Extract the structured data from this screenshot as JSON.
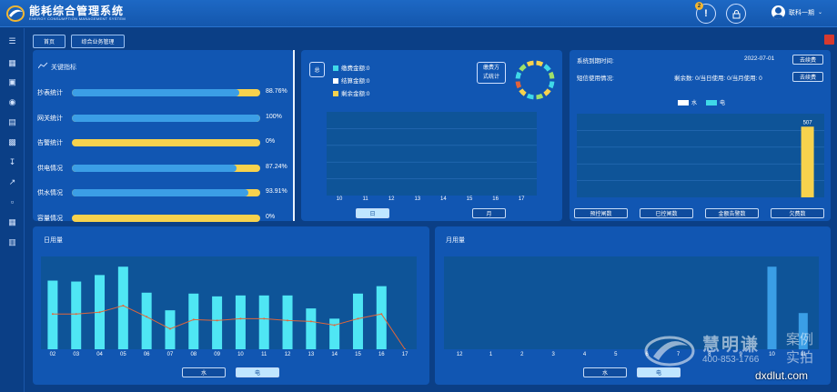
{
  "header": {
    "title": "能耗综合管理系统",
    "subtitle": "ENERGY CONSUMPTION MANAGEMENT SYSTEM",
    "notification_count": "2",
    "user_name": "联科一期"
  },
  "tabs": [
    {
      "label": "首页"
    },
    {
      "label": "综合业务管理"
    }
  ],
  "kpi": {
    "title": "关键指标",
    "items": [
      {
        "label": "抄表统计",
        "value": "88.76%",
        "fraction": 0.8876
      },
      {
        "label": "网关统计",
        "value": "100%",
        "fraction": 1.0
      },
      {
        "label": "告警统计",
        "value": "0%",
        "fraction": 0
      },
      {
        "label": "供电情况",
        "value": "87.24%",
        "fraction": 0.8724
      },
      {
        "label": "供水情况",
        "value": "93.91%",
        "fraction": 0.9391
      },
      {
        "label": "容量情况",
        "value": "0%",
        "fraction": 0
      }
    ]
  },
  "fee": {
    "total_label": "总",
    "legend": [
      "缴费金额:0",
      "结算金额:0",
      "剩余金额:0"
    ],
    "legend_colors": [
      "#3fd9e8",
      "#ffffff",
      "#f7d24d"
    ],
    "donut_label_1": "缴费方",
    "donut_label_2": "式统计",
    "buttons": {
      "day": "日",
      "month": "月"
    }
  },
  "system": {
    "expiry_label": "系统到期时间:",
    "expiry_date": "2022-07-01",
    "sms_label": "短信使用情况:",
    "sms_text": "剩余数: 0/当日使用: 0/当月使用: 0",
    "renew_label": "去续费",
    "legend_water": "水",
    "legend_elec": "电",
    "buttons": [
      "预控闸数",
      "已控闸数",
      "金额告警数",
      "欠费数"
    ]
  },
  "daily": {
    "title": "日用量",
    "buttons": {
      "water": "水",
      "elec": "电"
    }
  },
  "monthly": {
    "title": "月用量",
    "buttons": {
      "water": "水",
      "elec": "电"
    }
  },
  "watermark": {
    "brand": "慧明谦",
    "phone": "400-853-1766",
    "case_1": "案例",
    "case_2": "实拍",
    "site": "dxdlut.com"
  },
  "chart_data": [
    {
      "type": "bar",
      "categories": [
        "10",
        "11",
        "12",
        "13",
        "14",
        "15",
        "16",
        "17"
      ],
      "values": [
        0,
        0,
        0,
        0,
        0,
        0,
        0,
        0
      ],
      "ylim": [
        0,
        100
      ]
    },
    {
      "type": "bar",
      "categories": [
        "",
        "",
        "",
        "",
        "",
        "",
        ""
      ],
      "series": [
        {
          "name": "水",
          "values": [
            0,
            0,
            0,
            0,
            0,
            0,
            0
          ]
        },
        {
          "name": "电",
          "values": [
            0,
            0,
            0,
            0,
            0,
            0,
            507
          ]
        }
      ],
      "data_labels": [
        "507"
      ],
      "ylim": [
        0,
        600
      ]
    },
    {
      "type": "bar",
      "categories": [
        "02",
        "03",
        "04",
        "05",
        "06",
        "07",
        "08",
        "09",
        "10",
        "11",
        "12",
        "13",
        "14",
        "15",
        "16",
        "17"
      ],
      "values": [
        74,
        73,
        80,
        89,
        61,
        42,
        60,
        57,
        58,
        58,
        58,
        44,
        33,
        60,
        68,
        0
      ],
      "line": [
        38,
        38,
        40,
        47,
        35,
        22,
        32,
        31,
        33,
        33,
        31,
        30,
        26,
        33,
        38,
        0
      ],
      "ylim": [
        0,
        100
      ]
    },
    {
      "type": "bar",
      "categories": [
        "12",
        "1",
        "2",
        "3",
        "4",
        "5",
        "6",
        "7",
        "8",
        "9",
        "10",
        "11"
      ],
      "values": [
        0,
        0,
        0,
        0,
        0,
        0,
        0,
        0,
        0,
        0,
        89,
        39
      ],
      "ylim": [
        0,
        100
      ]
    }
  ]
}
